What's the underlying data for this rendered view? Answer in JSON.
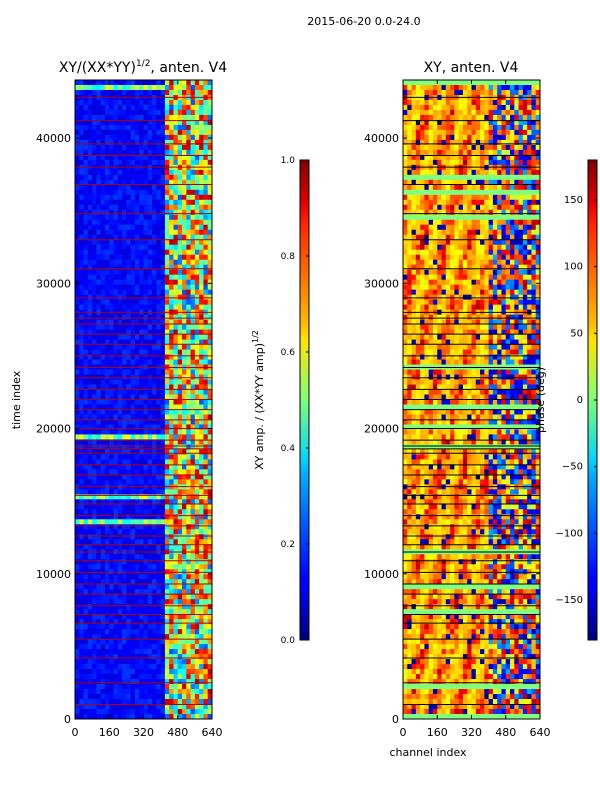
{
  "figure": {
    "suptitle": "2015-06-20 0.0-24.0"
  },
  "chart_data": [
    {
      "type": "heatmap",
      "title_main": "XY/(XX*YY)",
      "title_exp": "1/2",
      "title_tail": ", anten. V4",
      "xlabel": "",
      "ylabel": "time index",
      "xlim": [
        0,
        640
      ],
      "ylim": [
        0,
        44000
      ],
      "xticks": [
        0,
        160,
        320,
        480,
        640
      ],
      "yticks": [
        0,
        10000,
        20000,
        30000,
        40000
      ],
      "colorbar": {
        "label_main": "XY amp. / (XX*YY amp)",
        "label_exp": "1/2",
        "range": [
          0.0,
          1.0
        ],
        "ticks": [
          "0.0",
          "0.2",
          "0.4",
          "0.6",
          "0.8",
          "1.0"
        ],
        "colormap": "jet"
      },
      "flag_color": "#b30000",
      "flagged_rows": [
        1000,
        2500,
        4200,
        5500,
        6600,
        7200,
        7800,
        8600,
        9300,
        10100,
        10900,
        11500,
        12000,
        12600,
        13300,
        14000,
        14800,
        15400,
        16000,
        16800,
        17500,
        18300,
        18600,
        18800,
        19200,
        20000,
        20600,
        21300,
        22000,
        22700,
        23500,
        24200,
        25000,
        25800,
        26500,
        27200,
        27600,
        28000,
        29000,
        31000,
        33000,
        34800,
        36800,
        38000,
        38800,
        39600,
        41200,
        42800
      ]
    },
    {
      "type": "heatmap",
      "title": "XY, anten. V4",
      "xlabel": "channel index",
      "ylabel": "",
      "xlim": [
        0,
        640
      ],
      "ylim": [
        0,
        44000
      ],
      "xticks": [
        0,
        160,
        320,
        480,
        640
      ],
      "yticks": [
        0,
        10000,
        20000,
        30000,
        40000
      ],
      "colorbar": {
        "label": "phase (deg)",
        "range": [
          -180,
          180
        ],
        "ticks": [
          "−150",
          "−100",
          "−50",
          "0",
          "50",
          "100",
          "150"
        ],
        "colormap": "jet"
      },
      "flag_color": "#000000",
      "flagged_rows": [
        1000,
        2500,
        4200,
        5500,
        6600,
        7200,
        7800,
        8600,
        9300,
        10100,
        10900,
        11500,
        12000,
        12600,
        13300,
        14000,
        14800,
        15400,
        16000,
        16800,
        17500,
        18300,
        18600,
        18800,
        19200,
        20000,
        20600,
        21300,
        22000,
        22700,
        23500,
        24200,
        25000,
        25800,
        26500,
        27200,
        27600,
        28000,
        29000,
        31000,
        33000,
        34800,
        36800,
        38000,
        38800,
        39600,
        41200,
        42800
      ]
    }
  ]
}
